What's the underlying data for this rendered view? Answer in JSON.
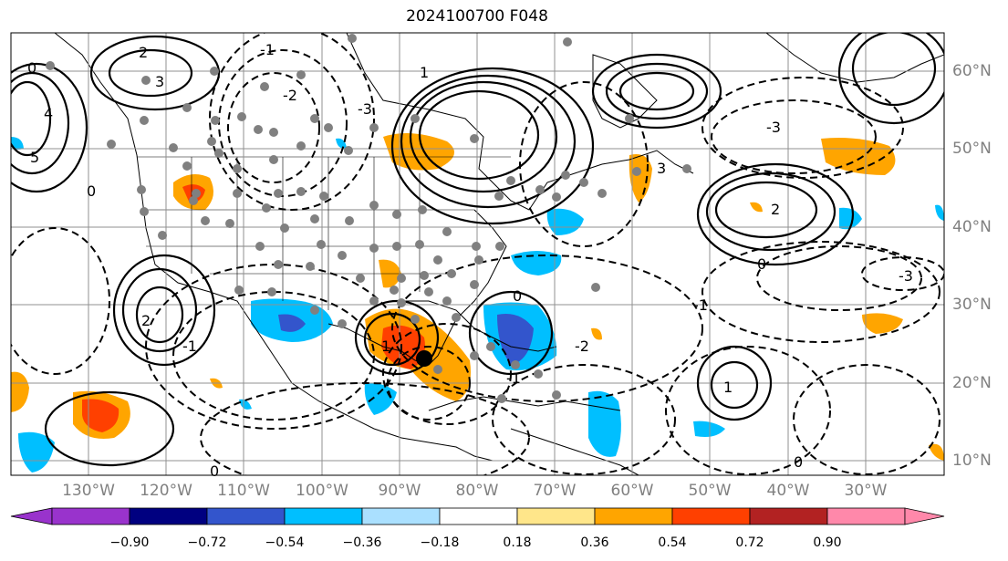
{
  "title": "2024100700 F048",
  "lat_labels": [
    "60°N",
    "50°N",
    "40°N",
    "30°N",
    "20°N",
    "10°N"
  ],
  "lon_labels": [
    "130°W",
    "120°W",
    "110°W",
    "100°W",
    "90°W",
    "80°W",
    "70°W",
    "60°W",
    "50°W",
    "40°W",
    "30°W"
  ],
  "colorbar": {
    "ticks": [
      "−0.90",
      "−0.72",
      "−0.54",
      "−0.36",
      "−0.18",
      "0.18",
      "0.36",
      "0.54",
      "0.72",
      "0.90"
    ],
    "colors": {
      "under": "#9933cc",
      "b1": "#000080",
      "b2": "#3355cc",
      "b3": "#00bfff",
      "b4": "#aae0ff",
      "neutral": "#ffffff",
      "p1": "#ffe68a",
      "p2": "#ffa500",
      "p3": "#ff4000",
      "p4": "#b22222",
      "over": "#ff88aa"
    }
  },
  "contour_labels": [
    "3",
    "2",
    "0",
    "4",
    "5",
    "-1",
    "-2",
    "-3",
    "1",
    "0",
    "2",
    "3",
    "-1",
    "0",
    "1",
    "2",
    "-3",
    "1",
    "-1",
    "0",
    "-1",
    "0",
    "-2",
    "-3",
    "0"
  ],
  "storm_marker": "black-dot"
}
